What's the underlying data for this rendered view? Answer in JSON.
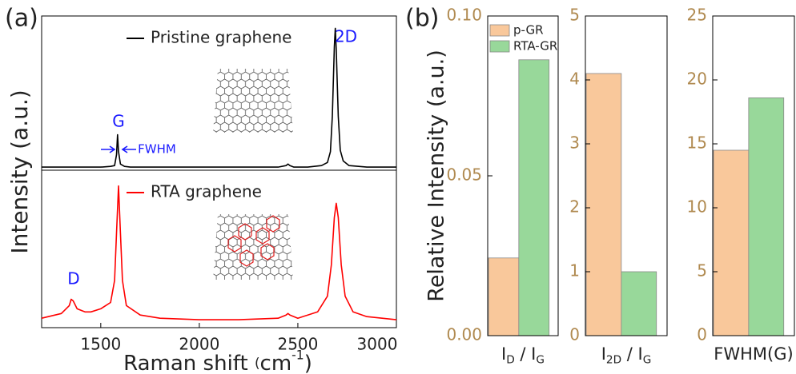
{
  "panel_labels": [
    "(a)",
    "(b)"
  ],
  "chart_data": [
    {
      "type": "line",
      "ylabel": "Intensity (a.u.)",
      "xlim": [
        1200,
        3000
      ],
      "ylim": [
        0,
        1
      ],
      "annotations": [
        "G",
        "2D",
        "FWHM"
      ],
      "series": [
        {
          "name": "Pristine graphene",
          "color": "#000000",
          "x": [
            1200,
            1300,
            1400,
            1500,
            1550,
            1570,
            1580,
            1585,
            1590,
            1600,
            1620,
            1650,
            1800,
            2000,
            2200,
            2400,
            2440,
            2450,
            2460,
            2480,
            2550,
            2620,
            2650,
            2665,
            2675,
            2685,
            2690,
            2695,
            2705,
            2715,
            2730,
            2760,
            2850,
            3000
          ],
          "values": [
            0.02,
            0.02,
            0.02,
            0.02,
            0.025,
            0.03,
            0.1,
            0.23,
            0.12,
            0.04,
            0.025,
            0.02,
            0.02,
            0.02,
            0.02,
            0.02,
            0.03,
            0.04,
            0.03,
            0.02,
            0.02,
            0.03,
            0.05,
            0.12,
            0.35,
            0.8,
            0.92,
            0.78,
            0.35,
            0.13,
            0.06,
            0.03,
            0.02,
            0.02
          ]
        }
      ]
    },
    {
      "type": "line",
      "xlabel": [
        {
          "text": "Raman shift "
        },
        {
          "text": "(",
          "small": true
        },
        {
          "text": "cm"
        },
        {
          "text": "-1",
          "sup": true
        },
        {
          "text": ")"
        }
      ],
      "xlim": [
        1200,
        3000
      ],
      "ylim": [
        0,
        1
      ],
      "xticks": [
        1500,
        2000,
        2500,
        3000
      ],
      "annotations": [
        "D"
      ],
      "series": [
        {
          "name": "RTA graphene",
          "color": "#ff0000",
          "x": [
            1200,
            1300,
            1340,
            1350,
            1360,
            1380,
            1420,
            1450,
            1500,
            1550,
            1570,
            1580,
            1590,
            1600,
            1610,
            1630,
            1700,
            1800,
            2000,
            2200,
            2400,
            2440,
            2450,
            2460,
            2500,
            2600,
            2650,
            2670,
            2685,
            2695,
            2705,
            2720,
            2740,
            2780,
            2850,
            3000
          ],
          "values": [
            0.06,
            0.09,
            0.14,
            0.18,
            0.17,
            0.12,
            0.1,
            0.1,
            0.12,
            0.16,
            0.3,
            0.6,
            0.9,
            0.6,
            0.3,
            0.14,
            0.08,
            0.06,
            0.05,
            0.05,
            0.06,
            0.08,
            0.09,
            0.08,
            0.06,
            0.1,
            0.2,
            0.4,
            0.7,
            0.79,
            0.7,
            0.4,
            0.2,
            0.1,
            0.07,
            0.05
          ]
        }
      ]
    },
    {
      "type": "bar",
      "ylabel": "Relative Intensity (a.u.)",
      "legend": true,
      "xlabel": [
        {
          "text": "I"
        },
        {
          "text": "D",
          "sub": true
        },
        {
          "text": " / I"
        },
        {
          "text": "G",
          "sub": true
        }
      ],
      "ylim": [
        0,
        0.1
      ],
      "yticks": [
        {
          "value": 0,
          "label": "0.00"
        },
        {
          "value": 0.05,
          "label": "0.05"
        },
        {
          "value": 0.1,
          "label": "0.10"
        }
      ],
      "series": [
        {
          "name": "p-GR",
          "color": "#f9c89b",
          "values": [
            0.0243
          ]
        },
        {
          "name": "RTA-GR",
          "color": "#98d89a",
          "values": [
            0.0863
          ]
        }
      ]
    },
    {
      "type": "bar",
      "xlabel": [
        {
          "text": "I"
        },
        {
          "text": "2D",
          "sub": true
        },
        {
          "text": " / I"
        },
        {
          "text": "G",
          "sub": true
        }
      ],
      "ylim": [
        0,
        5
      ],
      "yticks": [
        0,
        1,
        2,
        3,
        4,
        5
      ],
      "series": [
        {
          "color": "#f9c89b",
          "values": [
            4.1
          ]
        },
        {
          "color": "#98d89a",
          "values": [
            1.0
          ]
        }
      ]
    },
    {
      "type": "bar",
      "xlabel": [
        {
          "text": "FWHM(G)"
        }
      ],
      "ylim": [
        0,
        25
      ],
      "yticks": [
        0,
        5,
        10,
        15,
        20,
        25
      ],
      "series": [
        {
          "color": "#f9c89b",
          "values": [
            14.5
          ]
        },
        {
          "color": "#98d89a",
          "values": [
            18.6
          ]
        }
      ]
    }
  ]
}
